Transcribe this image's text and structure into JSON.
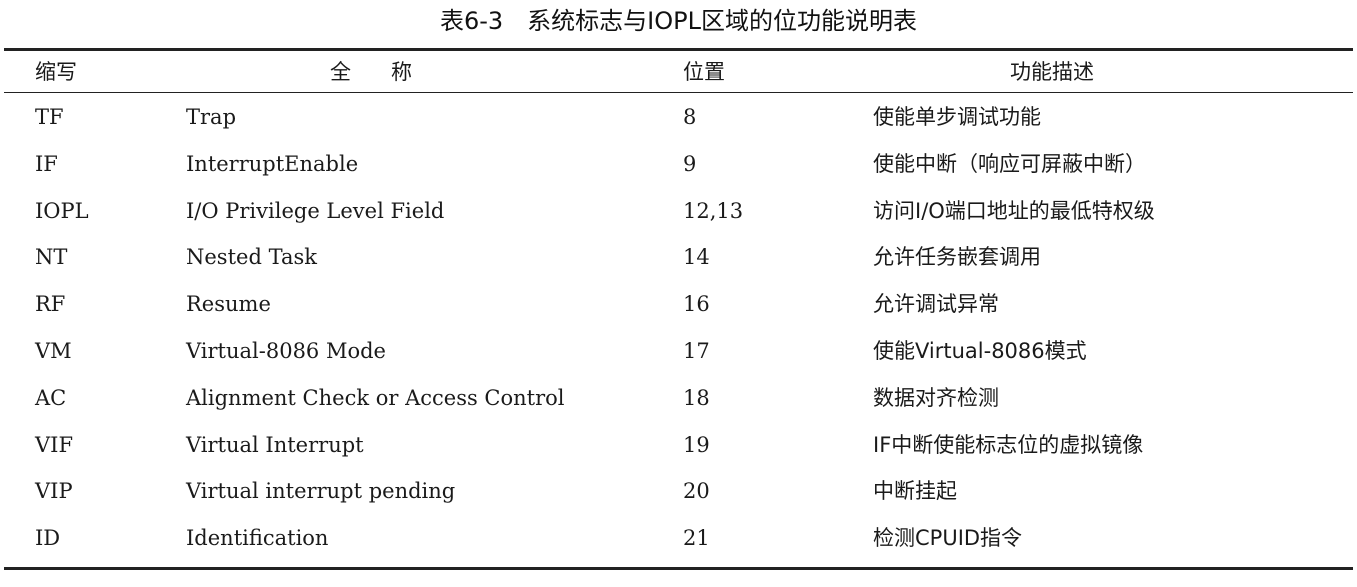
{
  "caption": "表6-3　系统标志与IOPL区域的位功能说明表",
  "header": {
    "abbr": "缩写",
    "name": "全称",
    "position": "位置",
    "function": "功能描述"
  },
  "rows": [
    {
      "abbr": "TF",
      "name": "Trap",
      "position": "8",
      "function": "使能单步调试功能"
    },
    {
      "abbr": "IF",
      "name": "InterruptEnable",
      "position": "9",
      "function": "使能中断（响应可屏蔽中断）"
    },
    {
      "abbr": "IOPL",
      "name": "I/O Privilege Level Field",
      "position": "12,13",
      "function": "访问I/O端口地址的最低特权级"
    },
    {
      "abbr": "NT",
      "name": "Nested Task",
      "position": "14",
      "function": "允许任务嵌套调用"
    },
    {
      "abbr": "RF",
      "name": "Resume",
      "position": "16",
      "function": "允许调试异常"
    },
    {
      "abbr": "VM",
      "name": "Virtual-8086 Mode",
      "position": "17",
      "function": "使能Virtual-8086模式"
    },
    {
      "abbr": "AC",
      "name": "Alignment Check or Access Control",
      "position": "18",
      "function": "数据对齐检测"
    },
    {
      "abbr": "VIF",
      "name": "Virtual Interrupt",
      "position": "19",
      "function": "IF中断使能标志位的虚拟镜像"
    },
    {
      "abbr": "VIP",
      "name": "Virtual interrupt pending",
      "position": "20",
      "function": "中断挂起"
    },
    {
      "abbr": "ID",
      "name": "Identification",
      "position": "21",
      "function": "检测CPUID指令"
    }
  ]
}
